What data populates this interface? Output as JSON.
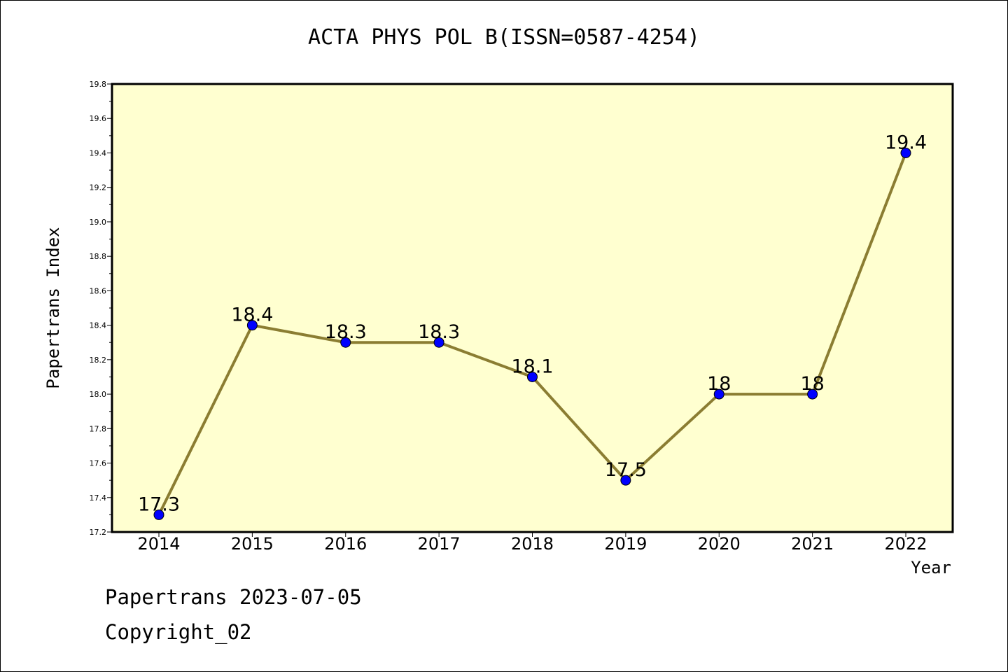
{
  "chart_data": {
    "type": "line",
    "title": "ACTA PHYS POL B(ISSN=0587-4254)",
    "xlabel": "Year",
    "ylabel": "Papertrans Index",
    "x": [
      "2014",
      "2015",
      "2016",
      "2017",
      "2018",
      "2019",
      "2020",
      "2021",
      "2022"
    ],
    "y": [
      17.3,
      18.4,
      18.3,
      18.3,
      18.1,
      17.5,
      18.0,
      18.0,
      19.4
    ],
    "data_labels": [
      "17.3",
      "18.4",
      "18.3",
      "18.3",
      "18.1",
      "17.5",
      "18",
      "18",
      "19.4"
    ],
    "ylim": [
      17.2,
      19.8
    ],
    "yticks": [
      "17.2",
      "17.4",
      "17.6",
      "17.8",
      "18.0",
      "18.2",
      "18.4",
      "18.6",
      "18.8",
      "19.0",
      "19.2",
      "19.4",
      "19.6",
      "19.8"
    ],
    "grid": false,
    "legend": "none",
    "colors": {
      "plot_background": "#ffffd0",
      "line": "#8b7d32",
      "marker": "#0000ff",
      "marker_edge": "#000000",
      "axis": "#000000"
    }
  },
  "footer": {
    "date_line": "Papertrans 2023-07-05",
    "copyright_line": "Copyright_02"
  }
}
